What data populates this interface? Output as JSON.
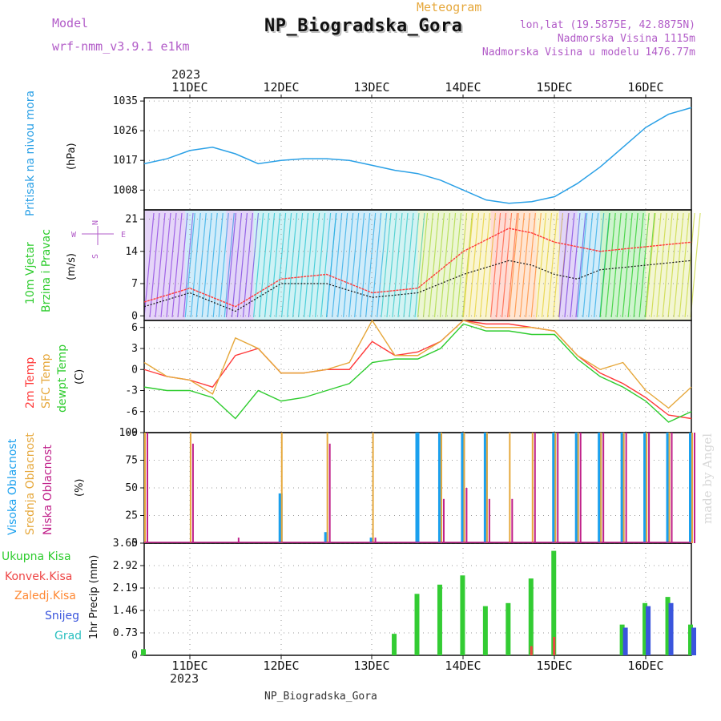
{
  "header": {
    "model_label": "Model",
    "model_name": "wrf-nmm_v3.9.1 e1km",
    "station": "NP_Biogradska_Gora",
    "meteogram": "Meteogram",
    "lonlat": "lon,lat (19.5875E, 42.8875N)",
    "elevation": "Nadmorska Visina 1115m",
    "model_elevation": "Nadmorska Visina u modelu 1476.77m",
    "year_top": "2023",
    "year_bottom": "2023",
    "footer_station": "NP_Biogradska_Gora",
    "credit": "made by Angel"
  },
  "panels": {
    "pressure": {
      "label": "Pritisak na nivou mora",
      "unit": "(hPa)",
      "yticks": [
        "1035",
        "1026",
        "1017",
        "1008"
      ]
    },
    "wind": {
      "label1": "10m Vjetar",
      "label2": "Brzina i Pravac",
      "unit": "(m/s)",
      "yticks": [
        "21",
        "14",
        "7",
        "0"
      ],
      "compass_n": "N",
      "compass_e": "E",
      "compass_w": "W",
      "compass_s": "S"
    },
    "temp": {
      "label1": "2m Temp",
      "label2": "SFC Temp",
      "label3": "dewpt Temp",
      "unit": "(C)",
      "yticks": [
        "6",
        "3",
        "0",
        "-3",
        "-6",
        "-9"
      ]
    },
    "cloud": {
      "label1": "Visoka Oblacnost",
      "label2": "Srednja Oblacnost",
      "label3": "Niska Oblacnost",
      "unit": "(%)",
      "yticks": [
        "100",
        "75",
        "50",
        "25",
        "0"
      ]
    },
    "precip": {
      "legend": [
        "Ukupna Kisa",
        "Konvek.Kisa",
        "Zaledj.Kisa",
        "Snijeg",
        "Grad"
      ],
      "unit": "1hr Precip (mm)",
      "yticks": [
        "3.65",
        "2.92",
        "2.19",
        "1.46",
        "0.73",
        "0"
      ]
    }
  },
  "x_axis": {
    "days": [
      "11DEC",
      "12DEC",
      "13DEC",
      "14DEC",
      "15DEC",
      "16DEC"
    ]
  },
  "colors": {
    "pressure": "#2aa0e6",
    "t2m": "#ff3a3a",
    "sfc": "#e6a83c",
    "dew": "#2ecc2e",
    "cloud_high": "#1aa0ee",
    "cloud_mid": "#e6a83c",
    "cloud_low": "#c0208a",
    "rain": "#33cc33",
    "conv": "#ee4444",
    "snow": "#3a55dd",
    "violet": "#b25cc8"
  },
  "chart_data": [
    {
      "type": "line",
      "title": "Pritisak na nivou mora",
      "ylabel": "(hPa)",
      "ylim": [
        1002,
        1036
      ],
      "x": [
        0,
        0.25,
        0.5,
        0.75,
        1,
        1.25,
        1.5,
        1.75,
        2,
        2.25,
        2.5,
        2.75,
        3,
        3.25,
        3.5,
        3.75,
        4,
        4.25,
        4.5,
        4.75,
        5,
        5.25,
        5.5,
        5.75,
        6
      ],
      "x_unit": "days from 10 DEC 12UTC",
      "series": [
        {
          "name": "slp",
          "values": [
            1016,
            1017.5,
            1020,
            1021,
            1019,
            1016,
            1017,
            1017.5,
            1017.5,
            1017,
            1015.5,
            1014,
            1013,
            1011,
            1008,
            1005,
            1004,
            1004.5,
            1006,
            1010,
            1015,
            1021,
            1027,
            1031,
            1033
          ]
        }
      ]
    },
    {
      "type": "line",
      "title": "10m Vjetar Brzina i Pravac",
      "ylabel": "(m/s)",
      "ylim": [
        -1,
        23
      ],
      "x": [
        0,
        0.5,
        1,
        1.5,
        2,
        2.5,
        3,
        3.5,
        4,
        4.25,
        4.5,
        4.75,
        5,
        5.5,
        6
      ],
      "series": [
        {
          "name": "gust",
          "values": [
            3,
            6,
            2,
            8,
            9,
            5,
            6,
            14,
            19,
            18,
            16,
            15,
            14,
            15,
            16
          ]
        },
        {
          "name": "mean",
          "values": [
            2,
            5,
            1,
            7,
            7,
            4,
            5,
            9,
            12,
            11,
            9,
            8,
            10,
            11,
            12
          ]
        }
      ]
    },
    {
      "type": "line",
      "title": "2m Temp / SFC Temp / dewpt Temp",
      "ylabel": "(C)",
      "ylim": [
        -9,
        7
      ],
      "x": [
        0,
        0.25,
        0.5,
        0.75,
        1,
        1.25,
        1.5,
        1.75,
        2,
        2.25,
        2.5,
        2.75,
        3,
        3.25,
        3.5,
        3.75,
        4,
        4.25,
        4.5,
        4.75,
        5,
        5.25,
        5.5,
        5.75,
        6
      ],
      "series": [
        {
          "name": "2m Temp",
          "values": [
            0,
            -1,
            -1.5,
            -2.5,
            2,
            3,
            -0.5,
            -0.5,
            0,
            0,
            4,
            2,
            2.5,
            4,
            7,
            6.5,
            6.5,
            6,
            5.5,
            2,
            -0.5,
            -2,
            -4,
            -6.5,
            -7
          ]
        },
        {
          "name": "SFC Temp",
          "values": [
            1,
            -1,
            -1.5,
            -3.5,
            4.5,
            3,
            -0.5,
            -0.5,
            0,
            1,
            7,
            2,
            2,
            4,
            7,
            6,
            6,
            6,
            5.5,
            2,
            0,
            1,
            -3,
            -5.5,
            -2.5
          ]
        },
        {
          "name": "dewpt Temp",
          "values": [
            -2.5,
            -3,
            -3,
            -4,
            -7,
            -3,
            -4.5,
            -4,
            -3,
            -2,
            1,
            1.5,
            1.5,
            3,
            6.5,
            5.5,
            5.5,
            5,
            5,
            1.5,
            -1,
            -2.5,
            -4.5,
            -7.5,
            -6
          ]
        }
      ]
    },
    {
      "type": "bar",
      "title": "Oblacnost",
      "ylabel": "(%)",
      "ylim": [
        0,
        100
      ],
      "x": [
        0,
        0.5,
        1,
        1.5,
        2,
        2.5,
        3,
        3.25,
        3.5,
        3.75,
        4,
        4.25,
        4.5,
        4.75,
        5,
        5.25,
        5.5,
        5.75,
        6
      ],
      "series": [
        {
          "name": "Visoka Oblacnost",
          "values": [
            0,
            0,
            0,
            45,
            10,
            5,
            100,
            100,
            100,
            100,
            0,
            0,
            100,
            100,
            100,
            100,
            100,
            100,
            100
          ]
        },
        {
          "name": "Srednja Oblacnost",
          "values": [
            100,
            100,
            0,
            100,
            100,
            100,
            0,
            100,
            100,
            100,
            100,
            100,
            100,
            100,
            100,
            100,
            100,
            100,
            100
          ]
        },
        {
          "name": "Niska Oblacnost",
          "values": [
            100,
            90,
            5,
            0,
            90,
            5,
            0,
            40,
            50,
            40,
            40,
            100,
            100,
            100,
            100,
            100,
            100,
            100,
            100
          ]
        }
      ]
    },
    {
      "type": "bar",
      "title": "1hr Precip",
      "ylabel": "(mm)",
      "ylim": [
        0,
        3.65
      ],
      "x": [
        0,
        0.5,
        1,
        1.5,
        2,
        2.5,
        2.75,
        3,
        3.25,
        3.5,
        3.75,
        4,
        4.25,
        4.5,
        4.75,
        5,
        5.25,
        5.5,
        5.75,
        6
      ],
      "series": [
        {
          "name": "Ukupna Kisa",
          "values": [
            0.2,
            0,
            0,
            0,
            0,
            0,
            0.7,
            2.0,
            2.3,
            2.6,
            1.6,
            1.7,
            2.5,
            3.4,
            0,
            0,
            1.0,
            1.7,
            1.9,
            1.0
          ]
        },
        {
          "name": "Konvek.Kisa",
          "values": [
            0,
            0,
            0,
            0,
            0,
            0,
            0,
            0,
            0,
            0,
            0,
            0,
            0.3,
            0.6,
            0,
            0,
            0,
            0,
            0,
            0
          ]
        },
        {
          "name": "Snijeg",
          "values": [
            0,
            0,
            0,
            0,
            0,
            0,
            0,
            0,
            0,
            0,
            0,
            0,
            0,
            0,
            0,
            0,
            0.9,
            1.6,
            1.7,
            0.9
          ]
        }
      ]
    }
  ]
}
